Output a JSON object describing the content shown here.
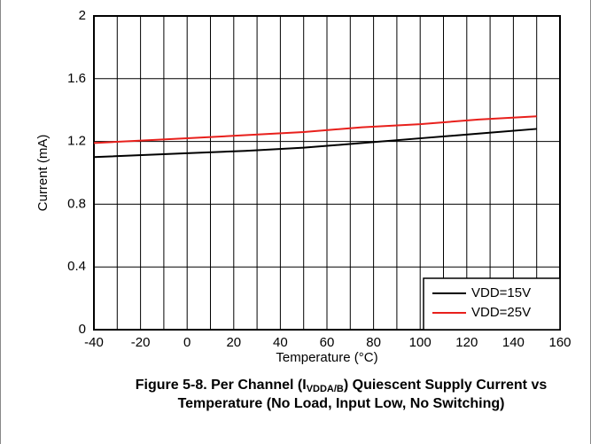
{
  "chart_data": {
    "type": "line",
    "xlabel": "Temperature (°C)",
    "ylabel": "Current (mA)",
    "x": [
      -40,
      0,
      25,
      50,
      75,
      100,
      125,
      150
    ],
    "series": [
      {
        "name": "VDD=15V",
        "color": "#000000",
        "values": [
          1.1,
          1.125,
          1.14,
          1.16,
          1.19,
          1.22,
          1.25,
          1.28
        ]
      },
      {
        "name": "VDD=25V",
        "color": "#e8201c",
        "values": [
          1.19,
          1.22,
          1.24,
          1.26,
          1.29,
          1.31,
          1.34,
          1.36
        ]
      }
    ],
    "xlim": [
      -40,
      160
    ],
    "xticks": [
      -40,
      -20,
      0,
      20,
      40,
      60,
      80,
      100,
      120,
      140,
      160
    ],
    "x_minor_ticks": [
      -30,
      -10,
      10,
      30,
      50,
      70,
      90,
      110,
      130,
      150
    ],
    "ylim": [
      0,
      2
    ],
    "yticks": [
      0,
      {
        "value": 0.4,
        "label": "0.4"
      },
      {
        "value": 0.8,
        "label": "0.8"
      },
      {
        "value": 1.2,
        "label": "1.2"
      },
      {
        "value": 1.6,
        "label": "1.6"
      },
      2
    ],
    "grid": true,
    "legend": "lower right",
    "caption": {
      "prefix": "Figure 5-8. Per Channel (I",
      "subscript": "VDDA/B",
      "suffix": ") Quiescent Supply Current vs Temperature (No Load, Input Low, No Switching)"
    }
  }
}
